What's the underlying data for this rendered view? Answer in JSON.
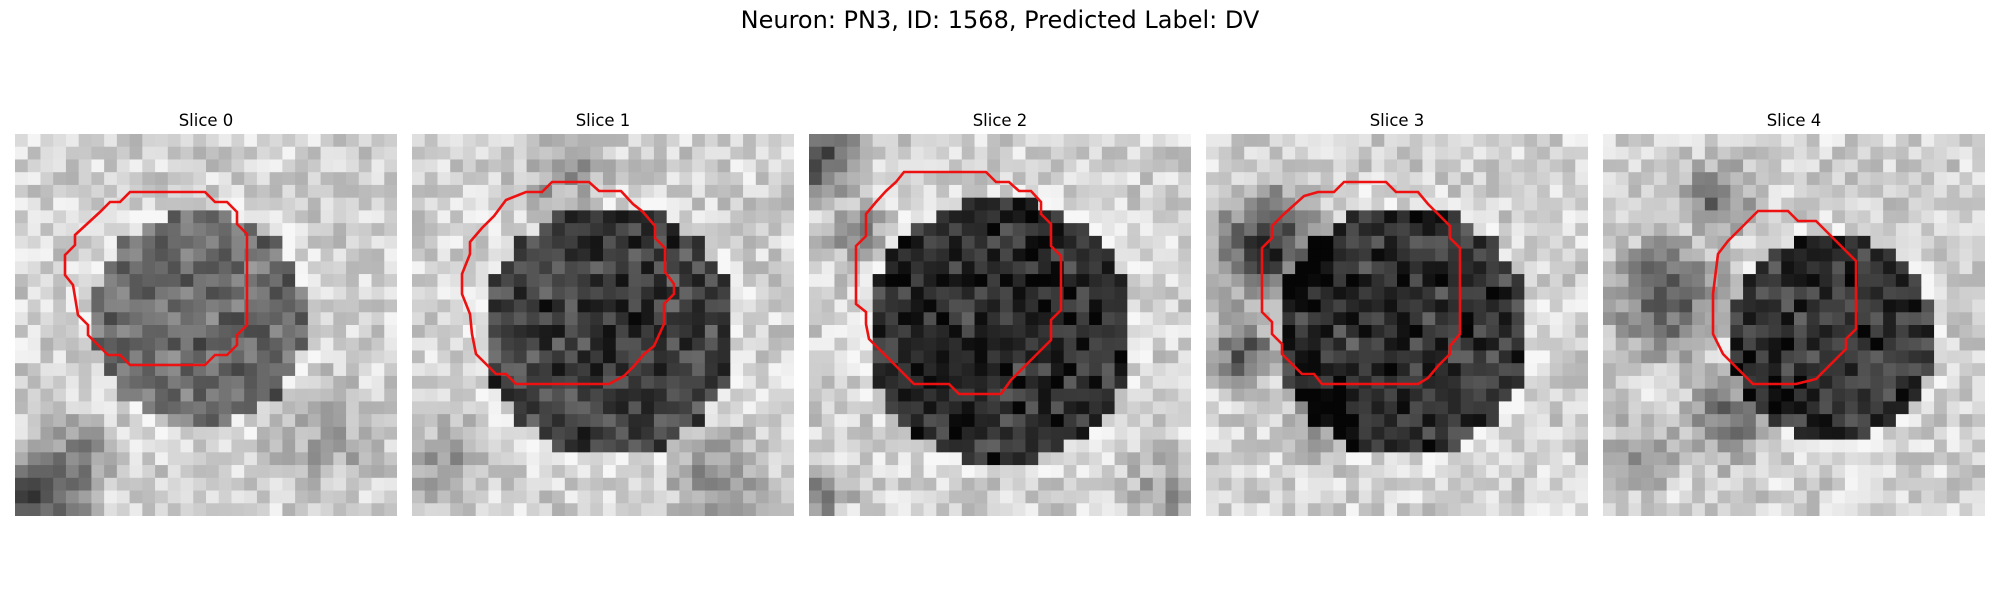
{
  "figure": {
    "title": "Neuron: PN3, ID: 1568, Predicted Label: DV",
    "contour_color": "#ee1111"
  },
  "panels": [
    {
      "title": "Slice 0",
      "cell": "small faint dark nucleus with pale surround"
    },
    {
      "title": "Slice 1",
      "cell": "round dark nucleus, bright halo"
    },
    {
      "title": "Slice 2",
      "cell": "large dark nucleus, dark neighbor top-left"
    },
    {
      "title": "Slice 3",
      "cell": "dark nucleus, very dark neighbor left"
    },
    {
      "title": "Slice 4",
      "cell": "smaller dark nucleus right of center, dark mass left"
    }
  ]
}
